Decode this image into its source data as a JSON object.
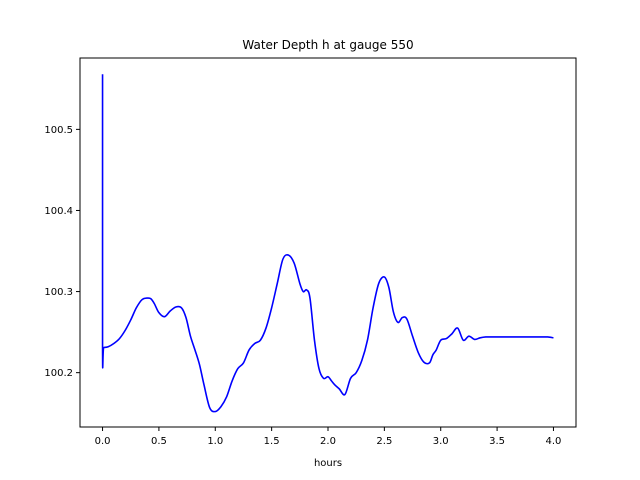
{
  "chart_data": {
    "type": "line",
    "title": "Water Depth h at gauge 550",
    "xlabel": "hours",
    "ylabel": "",
    "xlim": [
      -0.2,
      4.2
    ],
    "ylim": [
      100.133,
      100.588
    ],
    "x_ticks": [
      0.0,
      0.5,
      1.0,
      1.5,
      2.0,
      2.5,
      3.0,
      3.5,
      4.0
    ],
    "x_tick_labels": [
      "0.0",
      "0.5",
      "1.0",
      "1.5",
      "2.0",
      "2.5",
      "3.0",
      "3.5",
      "4.0"
    ],
    "y_ticks": [
      100.2,
      100.3,
      100.4,
      100.5
    ],
    "y_tick_labels": [
      "100.2",
      "100.3",
      "100.4",
      "100.5"
    ],
    "grid": false,
    "legend": "none",
    "series": [
      {
        "color": "#0000ff",
        "x": [
          0.0,
          0.0,
          0.01,
          0.05,
          0.1,
          0.15,
          0.2,
          0.25,
          0.3,
          0.35,
          0.4,
          0.43,
          0.46,
          0.5,
          0.55,
          0.6,
          0.65,
          0.7,
          0.74,
          0.78,
          0.82,
          0.86,
          0.9,
          0.95,
          1.0,
          1.05,
          1.1,
          1.15,
          1.2,
          1.25,
          1.3,
          1.35,
          1.4,
          1.45,
          1.5,
          1.55,
          1.6,
          1.65,
          1.7,
          1.75,
          1.78,
          1.81,
          1.84,
          1.88,
          1.92,
          1.96,
          2.0,
          2.03,
          2.06,
          2.1,
          2.15,
          2.2,
          2.25,
          2.3,
          2.35,
          2.4,
          2.45,
          2.5,
          2.54,
          2.58,
          2.62,
          2.66,
          2.7,
          2.75,
          2.8,
          2.85,
          2.9,
          2.93,
          2.96,
          3.0,
          3.05,
          3.1,
          3.15,
          3.2,
          3.25,
          3.3,
          3.35,
          3.4,
          3.45,
          3.5,
          3.55,
          3.6,
          3.65,
          3.7,
          3.75,
          3.8,
          3.85,
          3.9,
          3.95,
          4.0
        ],
        "y": [
          100.568,
          100.231,
          100.231,
          100.232,
          100.236,
          100.242,
          100.252,
          100.265,
          100.28,
          100.29,
          100.292,
          100.291,
          100.285,
          100.274,
          100.269,
          100.276,
          100.281,
          100.28,
          100.268,
          100.245,
          100.228,
          100.21,
          100.185,
          100.157,
          100.152,
          100.158,
          100.17,
          100.19,
          100.205,
          100.212,
          100.228,
          100.236,
          100.24,
          100.255,
          100.28,
          100.31,
          100.34,
          100.345,
          100.335,
          100.31,
          100.3,
          100.302,
          100.292,
          100.24,
          100.205,
          100.193,
          100.195,
          100.19,
          100.185,
          100.18,
          100.173,
          100.193,
          100.2,
          100.215,
          100.24,
          100.28,
          100.31,
          100.318,
          100.305,
          100.275,
          100.262,
          100.268,
          100.266,
          100.245,
          100.225,
          100.213,
          100.212,
          100.222,
          100.228,
          100.24,
          100.242,
          100.248,
          100.255,
          100.24,
          100.245,
          100.241,
          100.243,
          100.244,
          100.244,
          100.244,
          100.244,
          100.244,
          100.244,
          100.244,
          100.244,
          100.244,
          100.244,
          100.244,
          100.244,
          100.243
        ]
      }
    ]
  }
}
